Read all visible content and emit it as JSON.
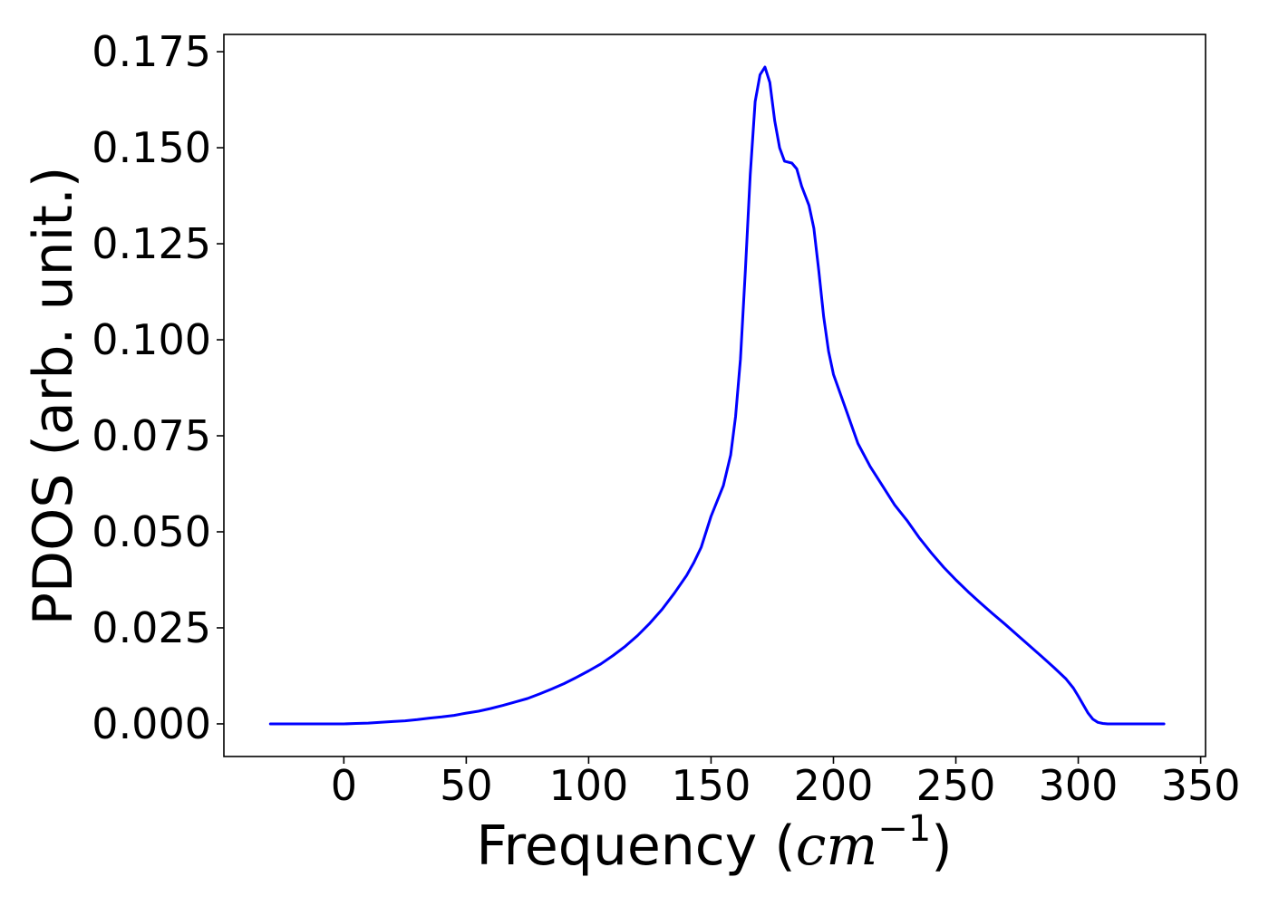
{
  "chart_data": {
    "type": "line",
    "title": "",
    "xlabel_prefix": "Frequency (",
    "xlabel_math": "cm",
    "xlabel_exponent": "−1",
    "xlabel_suffix": ")",
    "ylabel": "PDOS (arb. unit.)",
    "xlim": [
      -49,
      352
    ],
    "ylim": [
      -0.0085,
      0.1795
    ],
    "xticks": [
      0,
      50,
      100,
      150,
      200,
      250,
      300,
      350
    ],
    "yticks": [
      0.0,
      0.025,
      0.05,
      0.075,
      0.1,
      0.125,
      0.15,
      0.175
    ],
    "xtick_labels": [
      "0",
      "50",
      "100",
      "150",
      "200",
      "250",
      "300",
      "350"
    ],
    "ytick_labels": [
      "0.000",
      "0.025",
      "0.050",
      "0.075",
      "0.100",
      "0.125",
      "0.150",
      "0.175"
    ],
    "grid": false,
    "series": [
      {
        "color": "#0000ff",
        "x": [
          -30,
          -20,
          -10,
          0,
          5,
          10,
          15,
          20,
          25,
          30,
          35,
          40,
          45,
          50,
          55,
          60,
          65,
          70,
          75,
          80,
          85,
          90,
          95,
          100,
          105,
          110,
          115,
          120,
          125,
          130,
          135,
          140,
          143,
          146,
          150,
          155,
          158,
          160,
          162,
          164,
          166,
          168,
          170,
          172,
          174,
          176,
          178,
          180,
          183,
          185,
          187,
          190,
          192,
          194,
          196,
          198,
          200,
          205,
          210,
          215,
          220,
          225,
          230,
          235,
          240,
          245,
          250,
          255,
          260,
          265,
          270,
          275,
          280,
          285,
          290,
          295,
          298,
          300,
          302,
          304,
          306,
          308,
          310,
          312,
          315,
          320,
          325,
          330,
          335
        ],
        "y": [
          0.0,
          0.0,
          0.0,
          0.0,
          0.0001,
          0.0002,
          0.0004,
          0.0006,
          0.0008,
          0.0011,
          0.0015,
          0.0018,
          0.0022,
          0.0028,
          0.0033,
          0.004,
          0.0048,
          0.0057,
          0.0066,
          0.0078,
          0.0091,
          0.0105,
          0.0121,
          0.0138,
          0.0156,
          0.0178,
          0.0202,
          0.023,
          0.0262,
          0.0298,
          0.034,
          0.0386,
          0.042,
          0.046,
          0.054,
          0.062,
          0.07,
          0.08,
          0.095,
          0.118,
          0.143,
          0.162,
          0.169,
          0.171,
          0.167,
          0.157,
          0.15,
          0.1465,
          0.146,
          0.1445,
          0.14,
          0.135,
          0.129,
          0.118,
          0.106,
          0.097,
          0.091,
          0.082,
          0.073,
          0.067,
          0.062,
          0.057,
          0.053,
          0.0485,
          0.0445,
          0.0408,
          0.0375,
          0.0344,
          0.0315,
          0.0287,
          0.026,
          0.0232,
          0.0204,
          0.0176,
          0.0147,
          0.0117,
          0.0093,
          0.0072,
          0.005,
          0.0028,
          0.0012,
          0.0004,
          0.0001,
          0.0,
          0.0,
          0.0,
          0.0,
          0.0,
          0.0
        ]
      }
    ]
  }
}
